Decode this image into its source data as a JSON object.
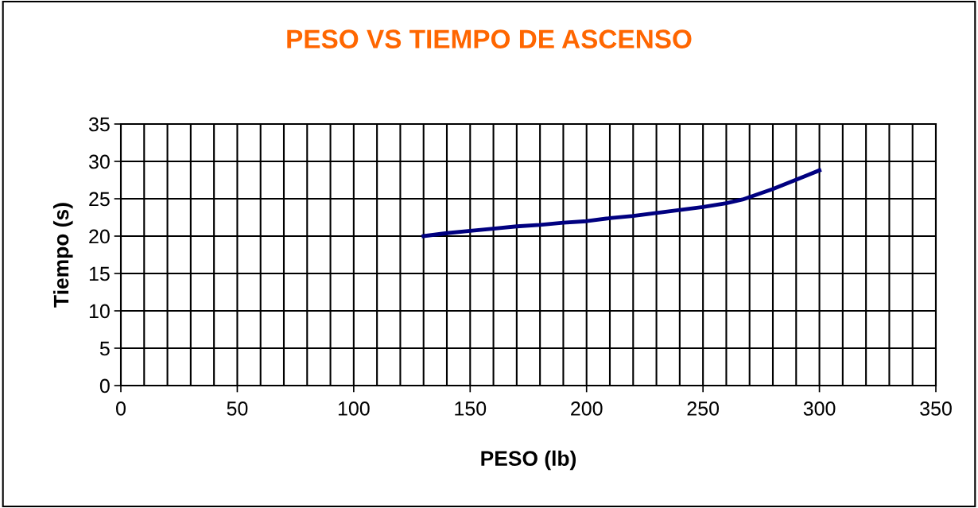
{
  "chart_data": {
    "type": "line",
    "title": "PESO VS TIEMPO DE ASCENSO",
    "xlabel": "PESO (lb)",
    "ylabel": "Tiempo (s)",
    "x": [
      130,
      140,
      150,
      160,
      170,
      180,
      190,
      200,
      210,
      220,
      230,
      240,
      250,
      260,
      267,
      280,
      300
    ],
    "series": [
      {
        "color": "#000080",
        "values": [
          20.0,
          20.4,
          20.7,
          21.0,
          21.3,
          21.5,
          21.8,
          22.0,
          22.4,
          22.7,
          23.1,
          23.5,
          23.9,
          24.4,
          24.9,
          26.3,
          28.8
        ]
      }
    ],
    "xlim": [
      0,
      350
    ],
    "xticks": [
      0,
      50,
      100,
      150,
      200,
      250,
      300,
      350
    ],
    "ylim": [
      0,
      35
    ],
    "yticks": [
      0,
      5,
      10,
      15,
      20,
      25,
      30,
      35
    ],
    "grid": true,
    "marker": "none",
    "line_style": "solid"
  }
}
